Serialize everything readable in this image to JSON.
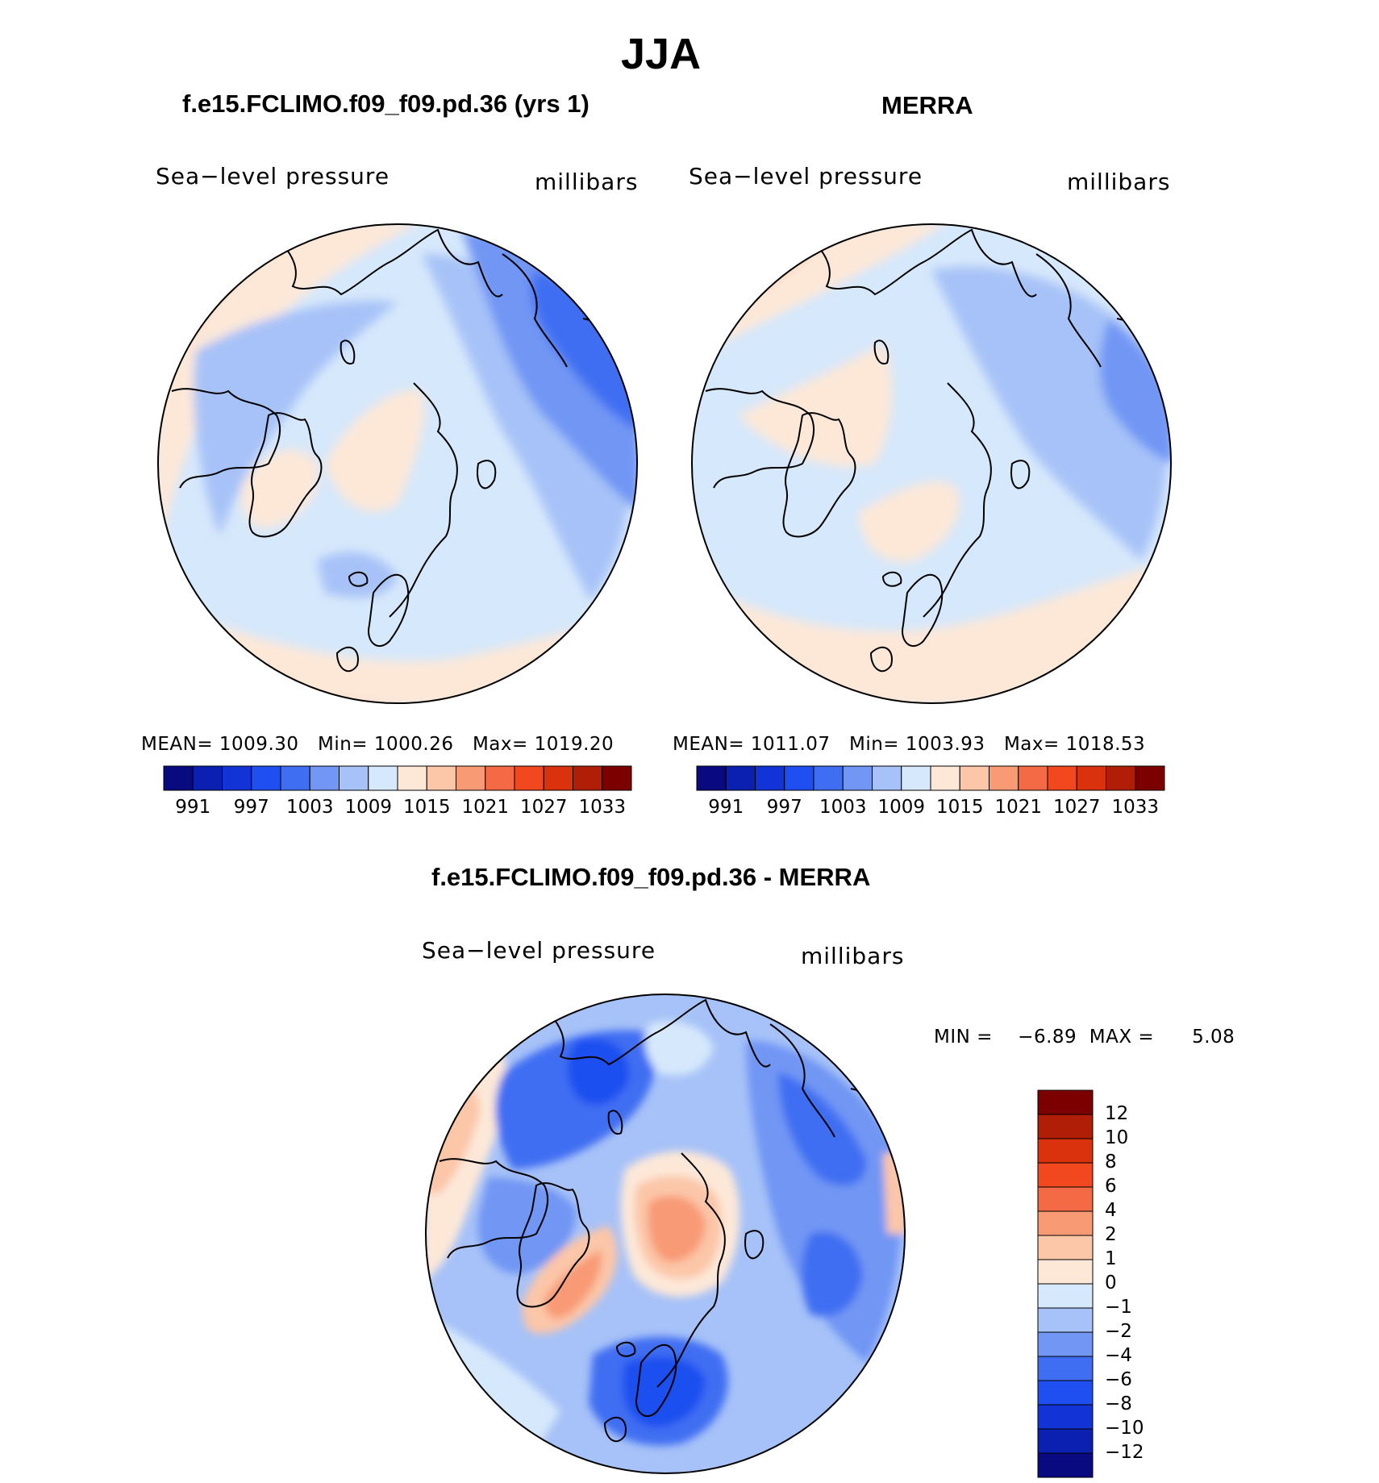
{
  "figure_title": "JJA",
  "chart_data": [
    {
      "type": "heatmap",
      "panel": "model",
      "title": "f.e15.FCLIMO.f09_f09.pd.36 (yrs 1)",
      "variable_label": "Sea−level pressure",
      "units_label": "millibars",
      "projection": "north-polar-stereographic",
      "stats": {
        "mean_label": "MEAN=",
        "mean": "1009.30",
        "min_label": "Min=",
        "min": "1000.26",
        "max_label": "Max=",
        "max": "1019.20"
      },
      "colorbar": {
        "orientation": "horizontal",
        "tick_labels": [
          "991",
          "997",
          "1003",
          "1009",
          "1015",
          "1021",
          "1027",
          "1033"
        ]
      }
    },
    {
      "type": "heatmap",
      "panel": "obs",
      "title": "MERRA",
      "variable_label": "Sea−level pressure",
      "units_label": "millibars",
      "projection": "north-polar-stereographic",
      "stats": {
        "mean_label": "MEAN=",
        "mean": "1011.07",
        "min_label": "Min=",
        "min": "1003.93",
        "max_label": "Max=",
        "max": "1018.53"
      },
      "colorbar": {
        "orientation": "horizontal",
        "tick_labels": [
          "991",
          "997",
          "1003",
          "1009",
          "1015",
          "1021",
          "1027",
          "1033"
        ]
      }
    },
    {
      "type": "heatmap",
      "panel": "difference",
      "title": "f.e15.FCLIMO.f09_f09.pd.36 - MERRA",
      "variable_label": "Sea−level pressure",
      "units_label": "millibars",
      "projection": "north-polar-stereographic",
      "stats": {
        "min_label": "MIN =",
        "min": "−6.89",
        "max_label": "MAX =",
        "max": "5.08"
      },
      "colorbar": {
        "orientation": "vertical",
        "tick_labels": [
          "12",
          "10",
          "8",
          "6",
          "4",
          "2",
          "1",
          "0",
          "−1",
          "−2",
          "−4",
          "−6",
          "−8",
          "−10",
          "−12"
        ]
      }
    }
  ],
  "colors": {
    "abs_palette": [
      "#0a0a80",
      "#0b1fb0",
      "#1233d6",
      "#1f4ff0",
      "#3f6ef2",
      "#7196f4",
      "#a7c2f8",
      "#d6e8fb",
      "#fde8d8",
      "#fcc6a8",
      "#f89a74",
      "#f46a44",
      "#f2481f",
      "#d9320c",
      "#b01e08",
      "#7d0000"
    ],
    "diff_palette": [
      "#7d0000",
      "#b01e08",
      "#d9320c",
      "#f2481f",
      "#f46a44",
      "#f89a74",
      "#fcc6a8",
      "#fde8d8",
      "#d6e8fb",
      "#a7c2f8",
      "#7196f4",
      "#3f6ef2",
      "#1f4ff0",
      "#1233d6",
      "#0b1fb0",
      "#0a0a80"
    ]
  }
}
